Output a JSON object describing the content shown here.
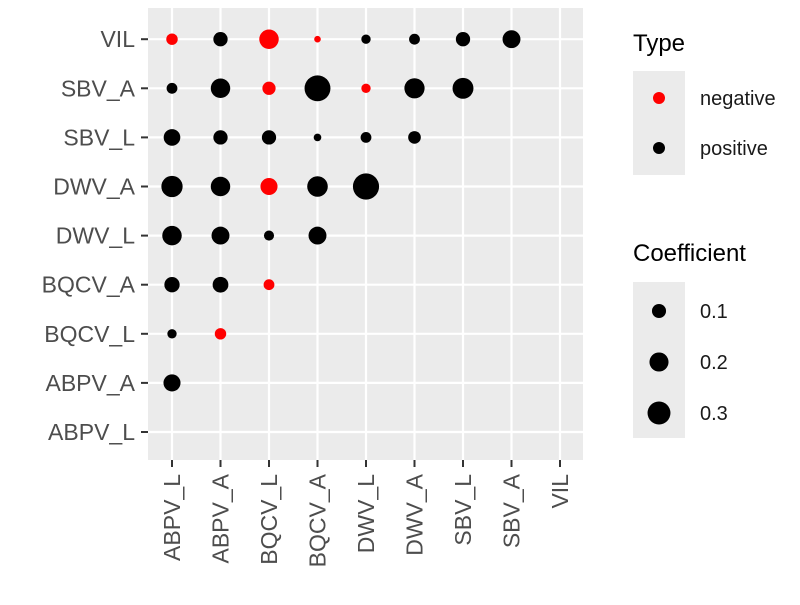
{
  "chart_data": {
    "type": "scatter",
    "x_categories": [
      "ABPV_L",
      "ABPV_A",
      "BQCV_L",
      "BQCV_A",
      "DWV_L",
      "DWV_A",
      "SBV_L",
      "SBV_A",
      "VIL"
    ],
    "y_categories": [
      "ABPV_L",
      "ABPV_A",
      "BQCV_L",
      "BQCV_A",
      "DWV_L",
      "DWV_A",
      "SBV_L",
      "SBV_A",
      "VIL"
    ],
    "points": [
      {
        "x": "ABPV_L",
        "y": "VIL",
        "type": "negative",
        "coefficient": 0.09
      },
      {
        "x": "ABPV_A",
        "y": "VIL",
        "type": "positive",
        "coefficient": 0.14
      },
      {
        "x": "BQCV_L",
        "y": "VIL",
        "type": "negative",
        "coefficient": 0.26
      },
      {
        "x": "BQCV_A",
        "y": "VIL",
        "type": "negative",
        "coefficient": 0.03
      },
      {
        "x": "DWV_L",
        "y": "VIL",
        "type": "positive",
        "coefficient": 0.06
      },
      {
        "x": "DWV_A",
        "y": "VIL",
        "type": "positive",
        "coefficient": 0.08
      },
      {
        "x": "SBV_L",
        "y": "VIL",
        "type": "positive",
        "coefficient": 0.14
      },
      {
        "x": "SBV_A",
        "y": "VIL",
        "type": "positive",
        "coefficient": 0.22
      },
      {
        "x": "ABPV_L",
        "y": "SBV_A",
        "type": "positive",
        "coefficient": 0.08
      },
      {
        "x": "ABPV_A",
        "y": "SBV_A",
        "type": "positive",
        "coefficient": 0.26
      },
      {
        "x": "BQCV_L",
        "y": "SBV_A",
        "type": "negative",
        "coefficient": 0.12
      },
      {
        "x": "BQCV_A",
        "y": "SBV_A",
        "type": "positive",
        "coefficient": 0.46
      },
      {
        "x": "DWV_L",
        "y": "SBV_A",
        "type": "negative",
        "coefficient": 0.06
      },
      {
        "x": "DWV_A",
        "y": "SBV_A",
        "type": "positive",
        "coefficient": 0.28
      },
      {
        "x": "SBV_L",
        "y": "SBV_A",
        "type": "positive",
        "coefficient": 0.3
      },
      {
        "x": "ABPV_L",
        "y": "SBV_L",
        "type": "positive",
        "coefficient": 0.19
      },
      {
        "x": "ABPV_A",
        "y": "SBV_L",
        "type": "positive",
        "coefficient": 0.14
      },
      {
        "x": "BQCV_L",
        "y": "SBV_L",
        "type": "positive",
        "coefficient": 0.14
      },
      {
        "x": "BQCV_A",
        "y": "SBV_L",
        "type": "positive",
        "coefficient": 0.04
      },
      {
        "x": "DWV_L",
        "y": "SBV_L",
        "type": "positive",
        "coefficient": 0.08
      },
      {
        "x": "DWV_A",
        "y": "SBV_L",
        "type": "positive",
        "coefficient": 0.11
      },
      {
        "x": "ABPV_L",
        "y": "DWV_A",
        "type": "positive",
        "coefficient": 0.31
      },
      {
        "x": "ABPV_A",
        "y": "DWV_A",
        "type": "positive",
        "coefficient": 0.26
      },
      {
        "x": "BQCV_L",
        "y": "DWV_A",
        "type": "negative",
        "coefficient": 0.2
      },
      {
        "x": "BQCV_A",
        "y": "DWV_A",
        "type": "positive",
        "coefficient": 0.29
      },
      {
        "x": "DWV_L",
        "y": "DWV_A",
        "type": "positive",
        "coefficient": 0.47
      },
      {
        "x": "ABPV_L",
        "y": "DWV_L",
        "type": "positive",
        "coefficient": 0.26
      },
      {
        "x": "ABPV_A",
        "y": "DWV_L",
        "type": "positive",
        "coefficient": 0.22
      },
      {
        "x": "BQCV_L",
        "y": "DWV_L",
        "type": "positive",
        "coefficient": 0.07
      },
      {
        "x": "BQCV_A",
        "y": "DWV_L",
        "type": "positive",
        "coefficient": 0.22
      },
      {
        "x": "ABPV_L",
        "y": "BQCV_A",
        "type": "positive",
        "coefficient": 0.16
      },
      {
        "x": "ABPV_A",
        "y": "BQCV_A",
        "type": "positive",
        "coefficient": 0.17
      },
      {
        "x": "BQCV_L",
        "y": "BQCV_A",
        "type": "negative",
        "coefficient": 0.08
      },
      {
        "x": "ABPV_L",
        "y": "BQCV_L",
        "type": "positive",
        "coefficient": 0.06
      },
      {
        "x": "ABPV_A",
        "y": "BQCV_L",
        "type": "negative",
        "coefficient": 0.09
      },
      {
        "x": "ABPV_L",
        "y": "ABPV_A",
        "type": "positive",
        "coefficient": 0.2
      }
    ],
    "title": "",
    "xlabel": "",
    "ylabel": "",
    "grid": true,
    "colors": {
      "negative": "#ff0000",
      "positive": "#000000",
      "panel": "#ebebeb",
      "grid": "#ffffff"
    },
    "legend": {
      "placement": "right",
      "type_title": "Type",
      "type_entries": [
        {
          "label": "negative",
          "type": "negative"
        },
        {
          "label": "positive",
          "type": "positive"
        }
      ],
      "size_title": "Coefficient",
      "size_entries": [
        {
          "label": "0.1",
          "value": 0.1
        },
        {
          "label": "0.2",
          "value": 0.2
        },
        {
          "label": "0.3",
          "value": 0.3
        }
      ]
    }
  }
}
